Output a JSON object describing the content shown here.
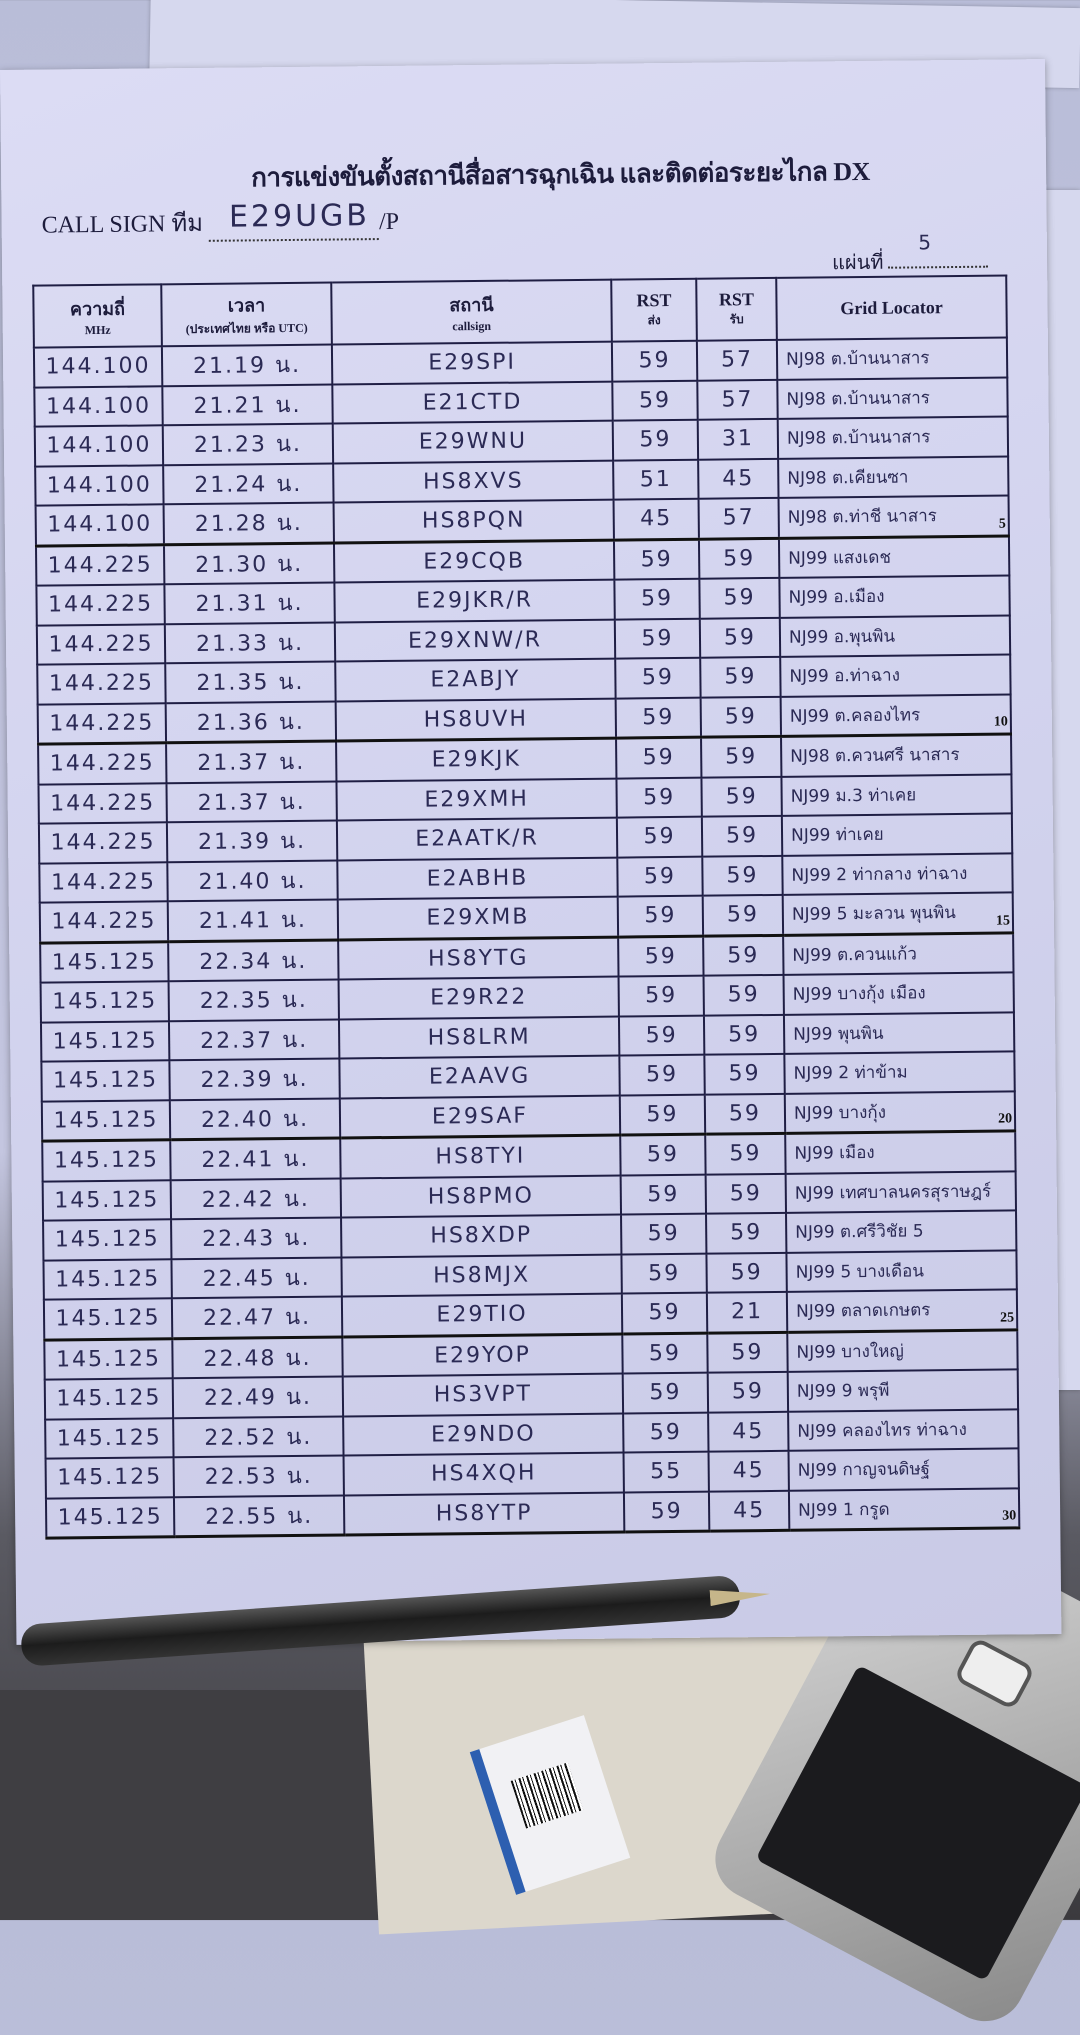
{
  "form": {
    "title": "การแข่งขันตั้งสถานีสื่อสารฉุกเฉิน และติดต่อระยะไกล DX",
    "callsign_label": "CALL SIGN ทีม",
    "callsign_value": "E29UGB",
    "callsign_suffix": "/P",
    "sheet_label": "แผ่นที่",
    "sheet_value": "5"
  },
  "table": {
    "headers": {
      "freq": "ความถี่",
      "freq_unit": "MHz",
      "time": "เวลา",
      "time_sub": "(ประเทศไทย หรือ UTC)",
      "station": "สถานี",
      "station_sub": "callsign",
      "rst_sent": "RST",
      "rst_sent_sub": "ส่ง",
      "rst_recv": "RST",
      "rst_recv_sub": "รับ",
      "grid": "Grid Locator"
    },
    "rows": [
      {
        "freq": "144.100",
        "time": "21.19 น.",
        "callsign": "E29SPI",
        "sent": "59",
        "recv": "57",
        "grid": "NJ98 ต.บ้านนาสาร"
      },
      {
        "freq": "144.100",
        "time": "21.21 น.",
        "callsign": "E21CTD",
        "sent": "59",
        "recv": "57",
        "grid": "NJ98 ต.บ้านนาสาร"
      },
      {
        "freq": "144.100",
        "time": "21.23 น.",
        "callsign": "E29WNU",
        "sent": "59",
        "recv": "31",
        "grid": "NJ98 ต.บ้านนาสาร"
      },
      {
        "freq": "144.100",
        "time": "21.24 น.",
        "callsign": "HS8XVS",
        "sent": "51",
        "recv": "45",
        "grid": "NJ98 ต.เคียนซา"
      },
      {
        "freq": "144.100",
        "time": "21.28 น.",
        "callsign": "HS8PQN",
        "sent": "45",
        "recv": "57",
        "grid": "NJ98 ต.ท่าชี นาสาร",
        "num": "5"
      },
      {
        "freq": "144.225",
        "time": "21.30 น.",
        "callsign": "E29CQB",
        "sent": "59",
        "recv": "59",
        "grid": "NJ99 แสงเดช"
      },
      {
        "freq": "144.225",
        "time": "21.31 น.",
        "callsign": "E29JKR/R",
        "sent": "59",
        "recv": "59",
        "grid": "NJ99 อ.เมือง"
      },
      {
        "freq": "144.225",
        "time": "21.33 น.",
        "callsign": "E29XNW/R",
        "sent": "59",
        "recv": "59",
        "grid": "NJ99 อ.พุนพิน"
      },
      {
        "freq": "144.225",
        "time": "21.35 น.",
        "callsign": "E2ABJY",
        "sent": "59",
        "recv": "59",
        "grid": "NJ99 อ.ท่าฉาง"
      },
      {
        "freq": "144.225",
        "time": "21.36 น.",
        "callsign": "HS8UVH",
        "sent": "59",
        "recv": "59",
        "grid": "NJ99 ต.คลองไทร",
        "num": "10"
      },
      {
        "freq": "144.225",
        "time": "21.37 น.",
        "callsign": "E29KJK",
        "sent": "59",
        "recv": "59",
        "grid": "NJ98 ต.ควนศรี นาสาร"
      },
      {
        "freq": "144.225",
        "time": "21.37 น.",
        "callsign": "E29XMH",
        "sent": "59",
        "recv": "59",
        "grid": "NJ99 ม.3 ท่าเคย"
      },
      {
        "freq": "144.225",
        "time": "21.39 น.",
        "callsign": "E2AATK/R",
        "sent": "59",
        "recv": "59",
        "grid": "NJ99 ท่าเคย"
      },
      {
        "freq": "144.225",
        "time": "21.40 น.",
        "callsign": "E2ABHB",
        "sent": "59",
        "recv": "59",
        "grid": "NJ99 2 ท่ากลาง ท่าฉาง"
      },
      {
        "freq": "144.225",
        "time": "21.41 น.",
        "callsign": "E29XMB",
        "sent": "59",
        "recv": "59",
        "grid": "NJ99 5 มะลวน พุนพิน",
        "num": "15"
      },
      {
        "freq": "145.125",
        "time": "22.34 น.",
        "callsign": "HS8YTG",
        "sent": "59",
        "recv": "59",
        "grid": "NJ99 ต.ควนแก้ว"
      },
      {
        "freq": "145.125",
        "time": "22.35 น.",
        "callsign": "E29R22",
        "sent": "59",
        "recv": "59",
        "grid": "NJ99 บางกุ้ง เมือง"
      },
      {
        "freq": "145.125",
        "time": "22.37 น.",
        "callsign": "HS8LRM",
        "sent": "59",
        "recv": "59",
        "grid": "NJ99 พุนพิน"
      },
      {
        "freq": "145.125",
        "time": "22.39 น.",
        "callsign": "E2AAVG",
        "sent": "59",
        "recv": "59",
        "grid": "NJ99 2 ท่าข้าม"
      },
      {
        "freq": "145.125",
        "time": "22.40 น.",
        "callsign": "E29SAF",
        "sent": "59",
        "recv": "59",
        "grid": "NJ99 บางกุ้ง",
        "num": "20"
      },
      {
        "freq": "145.125",
        "time": "22.41 น.",
        "callsign": "HS8TYI",
        "sent": "59",
        "recv": "59",
        "grid": "NJ99 เมือง"
      },
      {
        "freq": "145.125",
        "time": "22.42 น.",
        "callsign": "HS8PMO",
        "sent": "59",
        "recv": "59",
        "grid": "NJ99 เทศบาลนครสุราษฎร์"
      },
      {
        "freq": "145.125",
        "time": "22.43 น.",
        "callsign": "HS8XDP",
        "sent": "59",
        "recv": "59",
        "grid": "NJ99 ต.ศรีวิชัย 5"
      },
      {
        "freq": "145.125",
        "time": "22.45 น.",
        "callsign": "HS8MJX",
        "sent": "59",
        "recv": "59",
        "grid": "NJ99 5 บางเดือน"
      },
      {
        "freq": "145.125",
        "time": "22.47 น.",
        "callsign": "E29TIO",
        "sent": "59",
        "recv": "21",
        "grid": "NJ99 ตลาดเกษตร",
        "num": "25"
      },
      {
        "freq": "145.125",
        "time": "22.48 น.",
        "callsign": "E29YOP",
        "sent": "59",
        "recv": "59",
        "grid": "NJ99 บางใหญ่"
      },
      {
        "freq": "145.125",
        "time": "22.49 น.",
        "callsign": "HS3VPT",
        "sent": "59",
        "recv": "59",
        "grid": "NJ99 9 พรุพี"
      },
      {
        "freq": "145.125",
        "time": "22.52 น.",
        "callsign": "E29NDO",
        "sent": "59",
        "recv": "45",
        "grid": "NJ99 คลองไทร ท่าฉาง"
      },
      {
        "freq": "145.125",
        "time": "22.53 น.",
        "callsign": "HS4XQH",
        "sent": "55",
        "recv": "45",
        "grid": "NJ99 กาญจนดิษฐ์"
      },
      {
        "freq": "145.125",
        "time": "22.55 น.",
        "callsign": "HS8YTP",
        "sent": "59",
        "recv": "45",
        "grid": "NJ99 1 กรูด",
        "num": "30"
      }
    ]
  },
  "colors": {
    "paper": "#d6d7f0",
    "ink": "#2b2a55",
    "print": "#1d1c3c"
  }
}
